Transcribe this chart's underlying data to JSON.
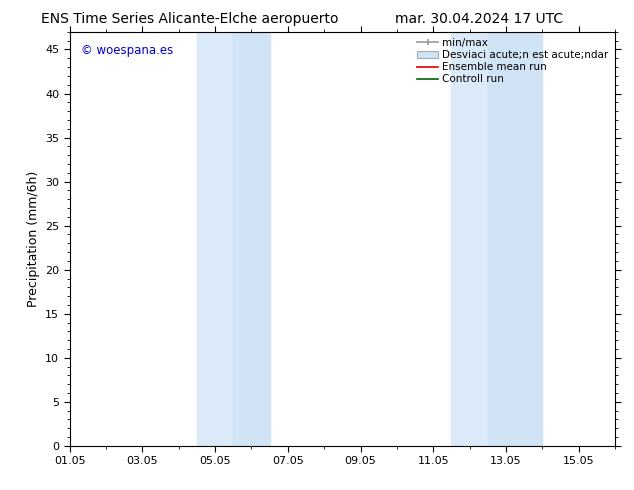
{
  "title_left": "ENS Time Series Alicante-Elche aeropuerto",
  "title_right": "mar. 30.04.2024 17 UTC",
  "ylabel": "Precipitation (mm/6h)",
  "ylim": [
    0,
    47
  ],
  "yticks": [
    0,
    5,
    10,
    15,
    20,
    25,
    30,
    35,
    40,
    45
  ],
  "xlim": [
    0,
    15
  ],
  "xtick_labels": [
    "01.05",
    "03.05",
    "05.05",
    "07.05",
    "09.05",
    "11.05",
    "13.05",
    "15.05"
  ],
  "xtick_positions": [
    0,
    2,
    4,
    6,
    8,
    10,
    12,
    14
  ],
  "background_color": "#ffffff",
  "shaded_regions": [
    {
      "xstart": 3.5,
      "xend": 4.5,
      "color": "#daeaf8"
    },
    {
      "xstart": 4.5,
      "xend": 5.5,
      "color": "#d0e4f5"
    },
    {
      "xstart": 10.5,
      "xend": 11.5,
      "color": "#daeaf8"
    },
    {
      "xstart": 11.5,
      "xend": 13.0,
      "color": "#d0e4f5"
    }
  ],
  "legend_minmax_color": "#999999",
  "legend_std_facecolor": "#d0e4f5",
  "legend_std_edgecolor": "#aaaaaa",
  "legend_ens_color": "#dd0000",
  "legend_ctrl_color": "#006600",
  "watermark_text": "© woespana.es",
  "watermark_color": "#0000cc",
  "title_fontsize": 10,
  "tick_fontsize": 8,
  "ylabel_fontsize": 9,
  "legend_fontsize": 7.5
}
